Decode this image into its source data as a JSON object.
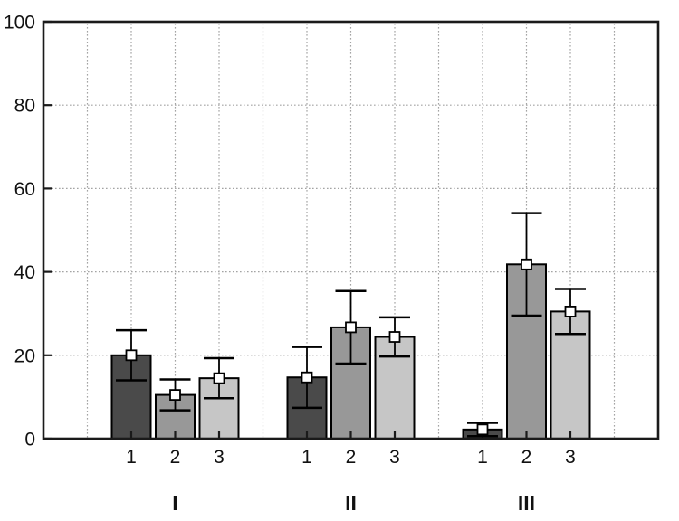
{
  "chart_data": {
    "type": "bar",
    "title": "",
    "xlabel": "",
    "ylabel": "",
    "ylim": [
      0,
      100
    ],
    "yticks": [
      0,
      20,
      40,
      60,
      80,
      100
    ],
    "ytick_labels": [
      "0",
      "20",
      "40",
      "60",
      "80",
      "100"
    ],
    "grid": "dotted-both-axes",
    "legend": "none",
    "error_marker": "open-square",
    "frame": "full-box",
    "colors": {
      "bar_series": [
        "#4a4a4a",
        "#989898",
        "#c6c6c6"
      ],
      "bar_border": "#000000",
      "error_bar": "#000000",
      "marker_fill": "#ffffff",
      "gridline": "#a3a3a3",
      "axis": "#1a1a1a",
      "background": "#ffffff"
    },
    "groups": [
      {
        "label": "I",
        "bars": [
          {
            "label": "1",
            "mean": 20.0,
            "sd": 6.0
          },
          {
            "label": "2",
            "mean": 10.5,
            "sd": 3.7
          },
          {
            "label": "3",
            "mean": 14.5,
            "sd": 4.8
          }
        ]
      },
      {
        "label": "II",
        "bars": [
          {
            "label": "1",
            "mean": 14.7,
            "sd": 7.3
          },
          {
            "label": "2",
            "mean": 26.7,
            "sd": 8.7
          },
          {
            "label": "3",
            "mean": 24.4,
            "sd": 4.7
          }
        ]
      },
      {
        "label": "III",
        "bars": [
          {
            "label": "1",
            "mean": 2.2,
            "sd": 1.6
          },
          {
            "label": "2",
            "mean": 41.8,
            "sd": 12.3
          },
          {
            "label": "3",
            "mean": 30.5,
            "sd": 5.4
          }
        ]
      }
    ]
  }
}
